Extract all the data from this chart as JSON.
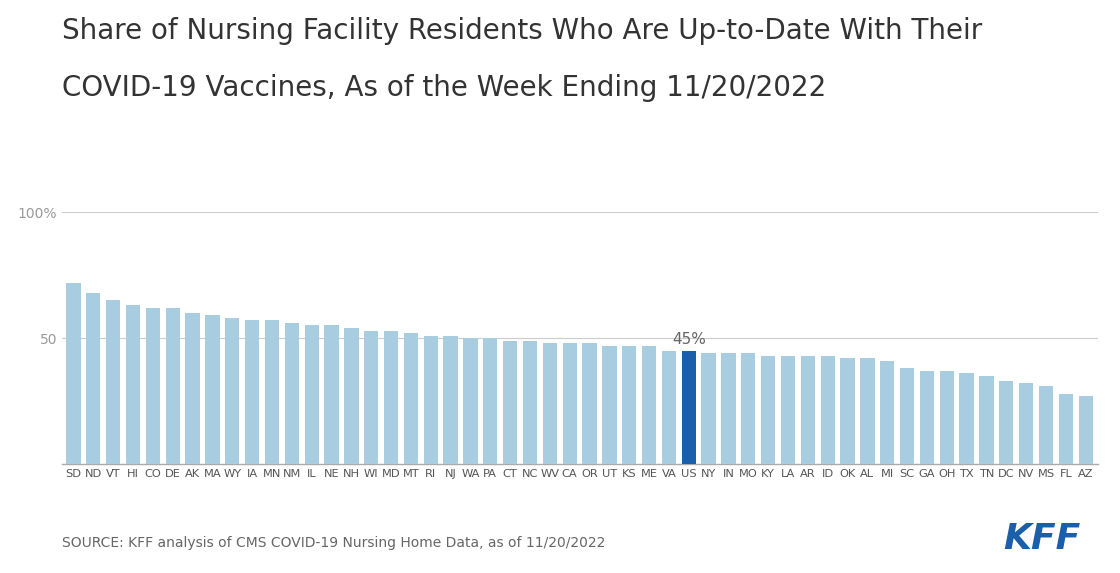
{
  "title_line1": "Share of Nursing Facility Residents Who Are Up-to-Date With Their",
  "title_line2": "COVID-19 Vaccines, As of the Week Ending 11/20/2022",
  "source": "SOURCE: KFF analysis of CMS COVID-19 Nursing Home Data, as of 11/20/2022",
  "categories": [
    "SD",
    "ND",
    "VT",
    "HI",
    "CO",
    "DE",
    "AK",
    "MA",
    "WY",
    "IA",
    "MN",
    "NM",
    "IL",
    "NE",
    "NH",
    "WI",
    "MD",
    "MT",
    "RI",
    "NJ",
    "WA",
    "PA",
    "CT",
    "NC",
    "WV",
    "CA",
    "OR",
    "UT",
    "KS",
    "ME",
    "VA",
    "US",
    "NY",
    "IN",
    "MO",
    "KY",
    "LA",
    "AR",
    "ID",
    "OK",
    "AL",
    "MI",
    "SC",
    "GA",
    "OH",
    "TX",
    "TN",
    "DC",
    "NV",
    "MS",
    "FL",
    "AZ"
  ],
  "values": [
    72,
    68,
    65,
    63,
    62,
    62,
    60,
    59,
    58,
    57,
    57,
    56,
    55,
    55,
    54,
    53,
    53,
    52,
    51,
    51,
    50,
    50,
    49,
    49,
    48,
    48,
    48,
    47,
    47,
    47,
    45,
    45,
    44,
    44,
    44,
    43,
    43,
    43,
    43,
    42,
    42,
    41,
    38,
    37,
    37,
    36,
    35,
    33,
    32,
    31,
    28,
    27
  ],
  "highlight_index": 31,
  "highlight_label": "45%",
  "highlight_color": "#1b5faa",
  "bar_color": "#a8cce0",
  "ylim": [
    0,
    100
  ],
  "grid_color": "#cccccc",
  "background_color": "#ffffff",
  "title_fontsize": 20,
  "tick_fontsize": 10,
  "source_fontsize": 10,
  "kff_color": "#1b5faa"
}
